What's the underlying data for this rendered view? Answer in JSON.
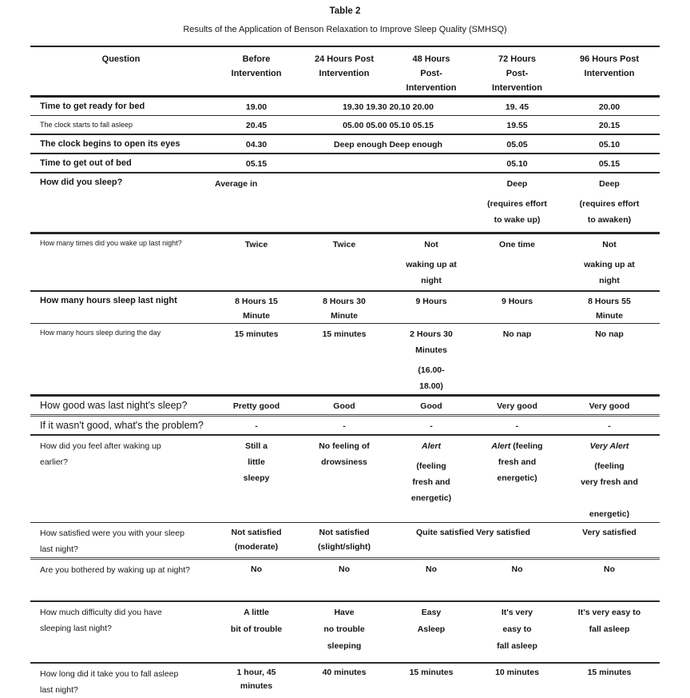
{
  "document": {
    "title": "Table 2",
    "subtitle": "Results of the Application of Benson Relaxation to Improve Sleep Quality (SMHSQ)"
  },
  "header": {
    "question": "Question",
    "before": "Before\nIntervention",
    "h24": "24 Hours Post\nIntervention",
    "h48": "48 Hours\nPost-\nIntervention",
    "h72": "72 Hours\nPost-\nIntervention",
    "h96": "96 Hours Post\nIntervention"
  },
  "rows": [
    {
      "question": "Time to get ready for bed",
      "before": "19.00",
      "merged": "19.30 19.30 20.10 20.00",
      "h72": "19. 45",
      "h96": "20.00"
    },
    {
      "question": "The clock starts to fall asleep",
      "before": "20.45",
      "merged": "05.00 05.00 05.10 05.15",
      "h72": "19.55",
      "h96": "20.15"
    },
    {
      "question": "The clock begins to open its eyes",
      "before": "04.30",
      "merged": "Deep enough Deep enough",
      "h72": "05.05",
      "h96": "05.10"
    },
    {
      "question": "Time to get out of bed",
      "before": "05.15",
      "merged": "",
      "h72": "05.10",
      "h96": "05.15"
    },
    {
      "question": "How did you sleep?",
      "before": "Average in",
      "h24": "",
      "h48": "",
      "h72": {
        "head": "Deep",
        "rest": "(requires effort\nto wake up)"
      },
      "h96": {
        "head": "Deep",
        "rest": "(requires effort\nto awaken)"
      }
    },
    {
      "question": "How many times did you wake up last night?",
      "before": "Twice",
      "h24": "Twice",
      "h48": {
        "head": "Not",
        "rest": "waking up at\nnight"
      },
      "h72": "One time",
      "h96": {
        "head": "Not",
        "rest": "waking up at\nnight"
      }
    },
    {
      "question": "How many hours sleep last night",
      "before": "8 Hours 15\nMinute",
      "h24": "8 Hours 30\nMinute",
      "h48": "9 Hours",
      "h72": "9 Hours",
      "h96": "8 Hours 55\nMinute"
    },
    {
      "question": "How many hours sleep during the day",
      "before": "15 minutes",
      "h24": "15 minutes",
      "h48": {
        "head": "2 Hours 30\nMinutes",
        "rest": "(16.00-\n18.00)"
      },
      "h72": "No nap",
      "h96": "No nap"
    },
    {
      "question": "How good was last night's sleep?",
      "before": "Pretty good",
      "h24": "Good",
      "h48": "Good",
      "h72": "Very good",
      "h96": "Very good"
    },
    {
      "question": "If it wasn't good, what's the problem?",
      "before": "-",
      "h24": "-",
      "h48": "-",
      "h72": "-",
      "h96": "-"
    },
    {
      "question": "How did you feel after waking up\nearlier?",
      "before": "Still a\nlittle\nsleepy",
      "h24": "No feeling of\ndrowsiness",
      "h48": {
        "it": "Alert",
        "rest": "(feeling\nfresh and\nenergetic)"
      },
      "h72": {
        "it": "Alert",
        "rest": " (feeling\nfresh and\nenergetic)"
      },
      "h96": {
        "it": "Very Alert",
        "rest": "(feeling\nvery fresh and\n\nenergetic)"
      }
    },
    {
      "question": "How satisfied were you with your sleep\nlast night?",
      "before": "Not satisfied\n(moderate)",
      "h24": "Not satisfied\n(slight/slight)",
      "merged": "Quite satisfied Very satisfied",
      "h96": "Very satisfied"
    },
    {
      "question": "Are you bothered by waking up at night?",
      "before": "No",
      "h24": "No",
      "h48": "No",
      "h72": "No",
      "h96": "No"
    },
    {
      "question": "How much difficulty did you have\nsleeping last night?",
      "before": "A little\nbit of trouble",
      "h24": "Have\nno trouble\nsleeping",
      "h48": "Easy\nAsleep",
      "h72": "It's very\neasy to\nfall asleep",
      "h96": "It's very easy to\nfall asleep"
    },
    {
      "question": "How long did it take you to fall asleep\nlast night?",
      "before": "1 hour, 45\nminutes",
      "h24": "40 minutes",
      "h48": "15 minutes",
      "h72": "10 minutes",
      "h96": "15 minutes"
    }
  ]
}
